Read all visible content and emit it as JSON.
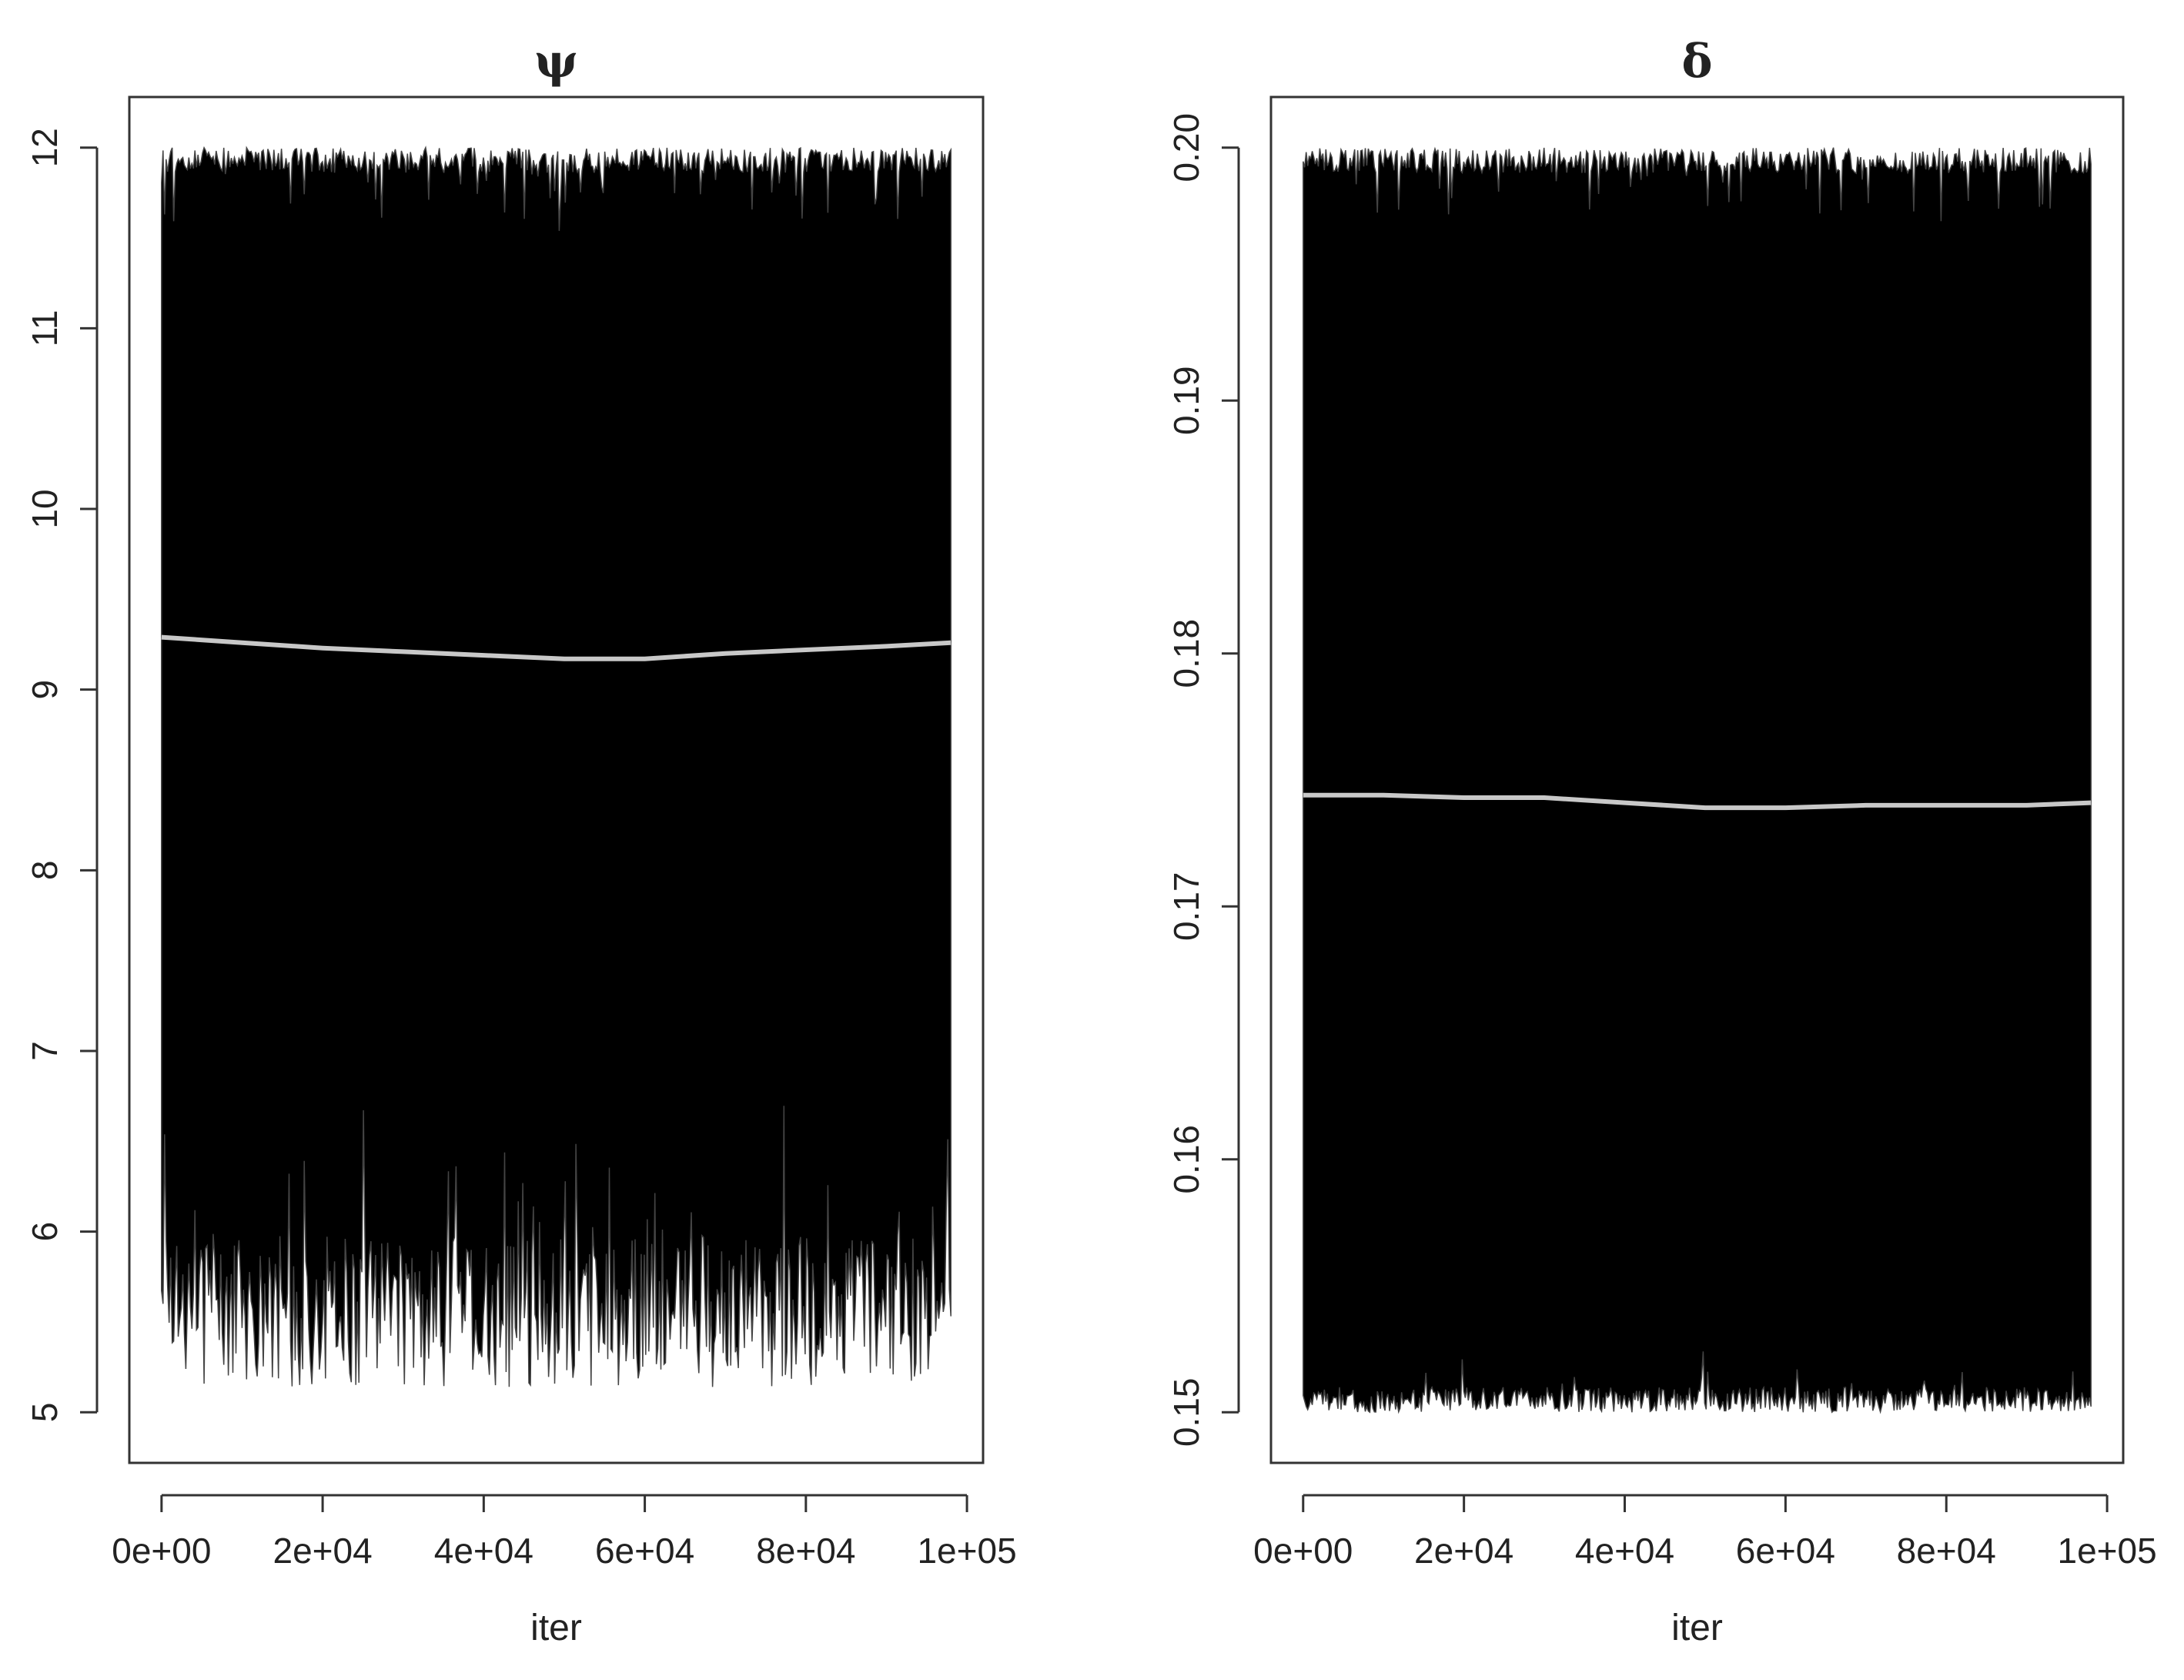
{
  "chart_data": [
    {
      "type": "line",
      "title": "ψ",
      "xlabel": "iter",
      "ylabel": "",
      "xlim": [
        -4000,
        102000
      ],
      "ylim": [
        4.72,
        12.28
      ],
      "xticks": [
        0,
        20000,
        40000,
        60000,
        80000,
        100000
      ],
      "xtick_labels": [
        "0e+00",
        "2e+04",
        "4e+04",
        "6e+04",
        "8e+04",
        "1e+05"
      ],
      "yticks": [
        5,
        6,
        7,
        8,
        9,
        10,
        11,
        12
      ],
      "ytick_labels": [
        "5",
        "6",
        "7",
        "8",
        "9",
        "10",
        "11",
        "12"
      ],
      "grid": false,
      "trace": {
        "n_iter": 98000,
        "min": 5.0,
        "max": 12.0,
        "color": "#000000"
      },
      "smooth": {
        "color": "#c8c8c8",
        "x": [
          0,
          10000,
          20000,
          30000,
          40000,
          50000,
          60000,
          70000,
          80000,
          90000,
          98000
        ],
        "y": [
          9.29,
          9.26,
          9.23,
          9.21,
          9.19,
          9.17,
          9.17,
          9.2,
          9.22,
          9.24,
          9.26
        ]
      }
    },
    {
      "type": "line",
      "title": "δ",
      "xlabel": "iter",
      "ylabel": "",
      "xlim": [
        -4000,
        102000
      ],
      "ylim": [
        0.148,
        0.202
      ],
      "xticks": [
        0,
        20000,
        40000,
        60000,
        80000,
        100000
      ],
      "xtick_labels": [
        "0e+00",
        "2e+04",
        "4e+04",
        "6e+04",
        "8e+04",
        "1e+05"
      ],
      "yticks": [
        0.15,
        0.16,
        0.17,
        0.18,
        0.19,
        0.2
      ],
      "ytick_labels": [
        "0.15",
        "0.16",
        "0.17",
        "0.18",
        "0.19",
        "0.20"
      ],
      "grid": false,
      "trace": {
        "n_iter": 98000,
        "min": 0.15,
        "max": 0.2,
        "color": "#000000"
      },
      "smooth": {
        "color": "#c8c8c8",
        "x": [
          0,
          10000,
          20000,
          30000,
          40000,
          50000,
          60000,
          70000,
          80000,
          90000,
          98000
        ],
        "y": [
          0.1744,
          0.1744,
          0.1743,
          0.1743,
          0.1741,
          0.1739,
          0.1739,
          0.174,
          0.174,
          0.174,
          0.1741
        ]
      }
    }
  ]
}
